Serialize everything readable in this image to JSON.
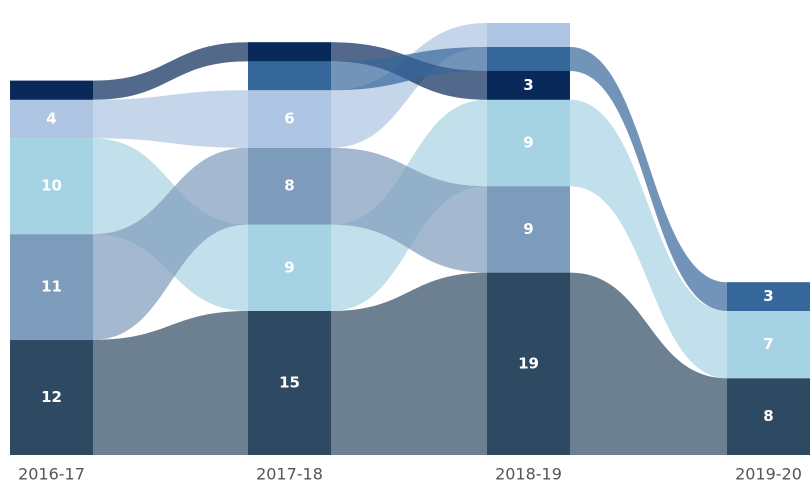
{
  "chart_data": {
    "type": "ribbon",
    "categories": [
      "2016-17",
      "2017-18",
      "2018-19",
      "2019-20"
    ],
    "series": [
      {
        "color": "#2e4a62",
        "values": [
          12,
          15,
          19,
          8
        ],
        "value_labels": [
          "12",
          "15",
          "19",
          "8"
        ]
      },
      {
        "color": "#a6d3e3",
        "values": [
          10,
          9,
          9,
          7
        ],
        "value_labels": [
          "10",
          "9",
          "9",
          "7"
        ]
      },
      {
        "color": "#7d9bba",
        "values": [
          11,
          8,
          9,
          null
        ],
        "value_labels": [
          "11",
          "8",
          "9",
          null
        ]
      },
      {
        "color": "#adc4e2",
        "values": [
          4,
          6,
          2.5,
          null
        ],
        "value_labels": [
          "4",
          "6",
          null,
          null
        ]
      },
      {
        "color": "#08295a",
        "values": [
          2,
          2,
          3,
          null
        ],
        "value_labels": [
          null,
          null,
          "3",
          null
        ]
      },
      {
        "color": "#36679a",
        "values": [
          null,
          3,
          2.5,
          3
        ],
        "value_labels": [
          null,
          null,
          null,
          "3"
        ]
      }
    ]
  }
}
